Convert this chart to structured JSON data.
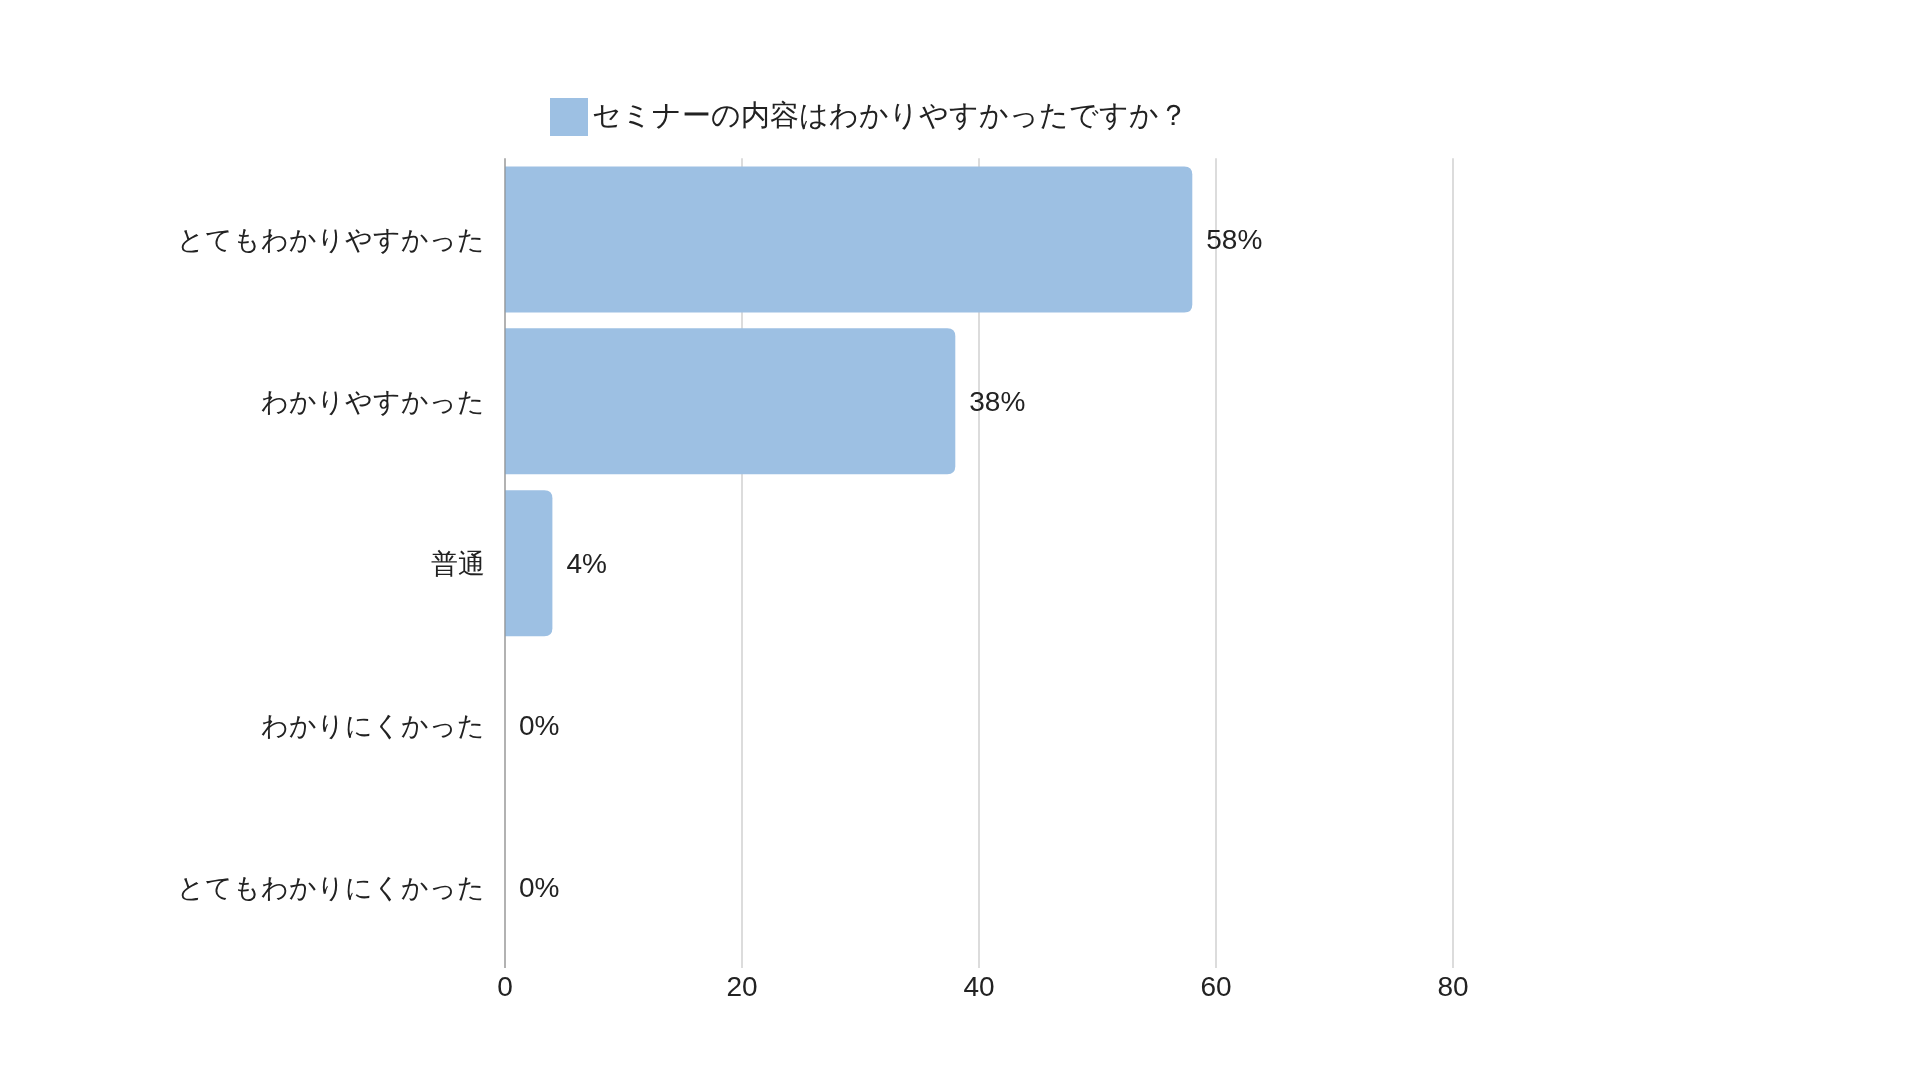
{
  "chart_data": {
    "type": "bar",
    "orientation": "horizontal",
    "categories": [
      "とてもわかりやすかった",
      "わかりやすかった",
      "普通",
      "わかりにくかった",
      "とてもわかりにくかった"
    ],
    "series": [
      {
        "name": "セミナーの内容はわかりやすかったですか？",
        "color": "#9dc0e3",
        "values": [
          58,
          38,
          4,
          0,
          0
        ],
        "value_labels": [
          "58%",
          "38%",
          "4%",
          "0%",
          "0%"
        ]
      }
    ],
    "xlim": [
      0,
      80
    ],
    "xticks": [
      0,
      20,
      40,
      60,
      80
    ],
    "grid": "x",
    "legend": "top"
  }
}
